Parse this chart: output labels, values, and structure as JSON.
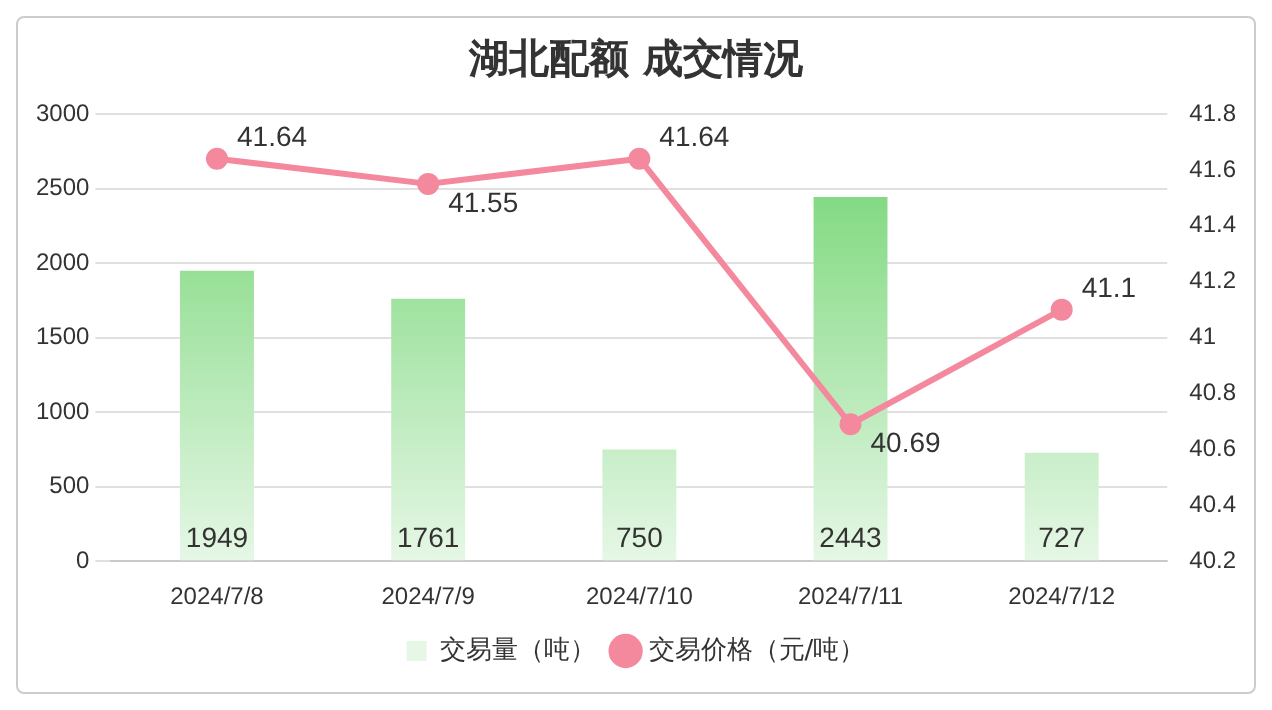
{
  "chart_data": {
    "type": "bar",
    "title": "湖北配额 成交情况",
    "categories": [
      "2024/7/8",
      "2024/7/9",
      "2024/7/10",
      "2024/7/11",
      "2024/7/12"
    ],
    "series": [
      {
        "name": "交易量（吨）",
        "color": "#6dd36d",
        "values": [
          1949,
          1761,
          750,
          2443,
          727
        ]
      },
      {
        "name": "交易价格（元/吨）",
        "type": "line",
        "axis": "y2",
        "color": "#f4899e",
        "values": [
          41.64,
          41.55,
          41.64,
          40.69,
          41.1
        ],
        "marker": "circle"
      }
    ],
    "ylim": [
      0,
      3000
    ],
    "yticks": [
      0,
      500,
      1000,
      1500,
      2000,
      2500,
      3000
    ],
    "y2lim": [
      40.2,
      41.8
    ],
    "y2ticks": [
      40.2,
      40.4,
      40.6,
      40.8,
      41,
      41.2,
      41.4,
      41.6,
      41.8
    ],
    "grid": "y",
    "legend": "bottom",
    "data_labels": true
  }
}
